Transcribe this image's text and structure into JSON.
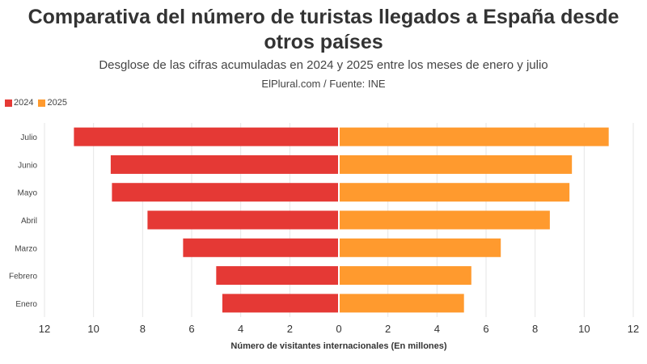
{
  "chart_data": {
    "type": "bar",
    "orientation": "horizontal-butterfly",
    "title": "Comparativa del número de turistas llegados a España desde otros países",
    "subtitle": "Desglose de las cifras acumuladas en 2024 y 2025 entre los meses de enero y julio",
    "source": "ElPlural.com / Fuente: INE",
    "categories": [
      "Julio",
      "Junio",
      "Mayo",
      "Abril",
      "Marzo",
      "Febrero",
      "Enero"
    ],
    "series": [
      {
        "name": "2024",
        "color": "#e53935",
        "values": [
          10.8,
          9.3,
          9.25,
          7.8,
          6.35,
          5.0,
          4.75
        ]
      },
      {
        "name": "2025",
        "color": "#ff9a2e",
        "values": [
          11.0,
          9.5,
          9.4,
          8.6,
          6.6,
          5.4,
          5.1
        ]
      }
    ],
    "xlabel": "Número de visitantes internacionales (En millones)",
    "xlim": [
      -12,
      12
    ],
    "xticks": [
      "12",
      "10",
      "8",
      "6",
      "4",
      "2",
      "0",
      "2",
      "4",
      "6",
      "8",
      "10",
      "12"
    ],
    "grid": true,
    "legend": "top-left"
  }
}
